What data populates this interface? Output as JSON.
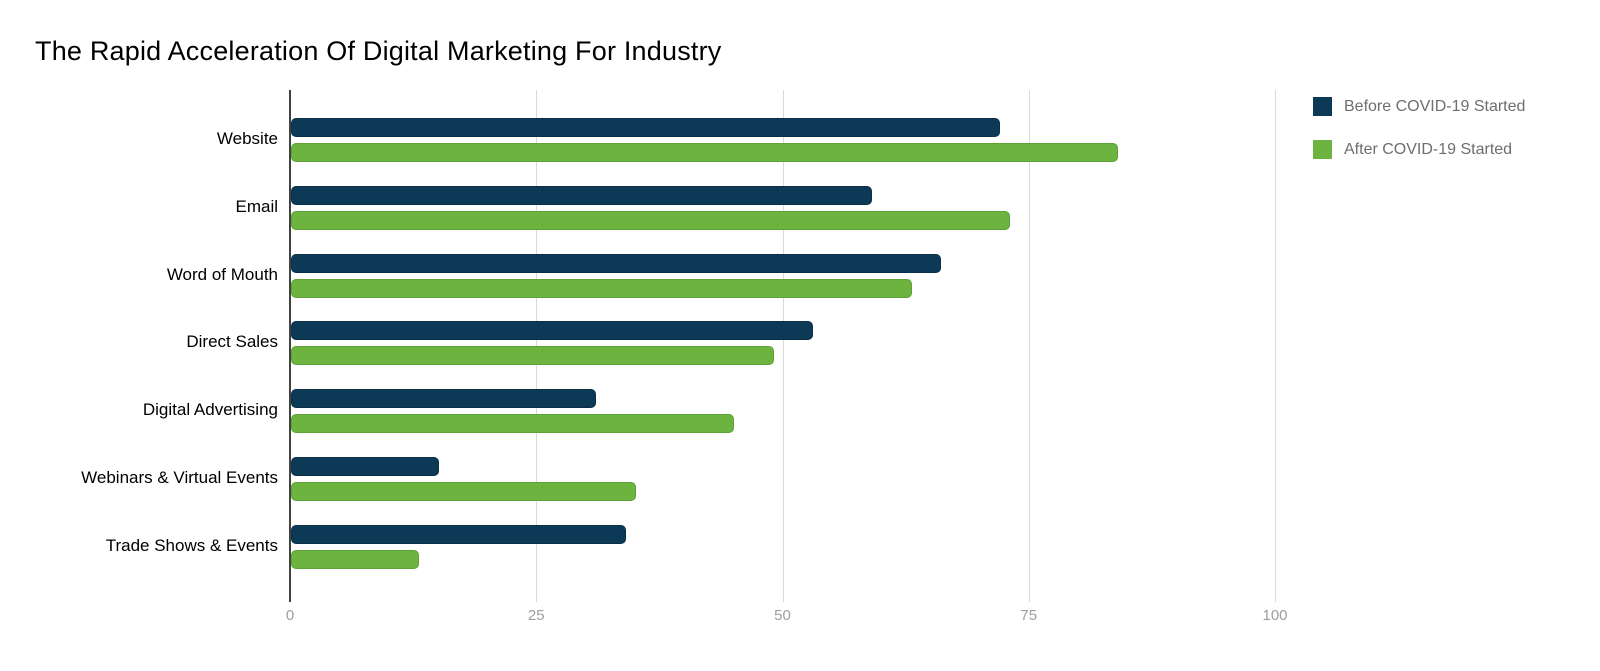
{
  "title": "The Rapid Acceleration Of Digital Marketing For Industry",
  "chart_data": {
    "type": "bar",
    "orientation": "horizontal",
    "title": "The Rapid Acceleration Of Digital Marketing For Industry",
    "categories": [
      "Website",
      "Email",
      "Word of Mouth",
      "Direct Sales",
      "Digital Advertising",
      "Webinars & Virtual Events",
      "Trade Shows & Events"
    ],
    "series": [
      {
        "name": "Before COVID-19 Started",
        "color": "#0c3a56",
        "values": [
          72,
          59,
          66,
          53,
          31,
          15,
          34
        ]
      },
      {
        "name": "After COVID-19 Started",
        "color": "#6db33f",
        "values": [
          84,
          73,
          63,
          49,
          45,
          35,
          13
        ]
      }
    ],
    "xlabel": "",
    "ylabel": "",
    "xlim": [
      0,
      100
    ],
    "xticks": [
      0,
      25,
      50,
      75,
      100
    ],
    "grid": "vertical",
    "legend_position": "right"
  },
  "colors": {
    "background": "#ffffff",
    "gridline": "#dadada",
    "axis_line": "#424242",
    "tick_label": "#9e9e9e",
    "category_label": "#000000",
    "legend_text": "#6e6e6e",
    "series_before": "#0c3a56",
    "series_after": "#6db33f"
  }
}
